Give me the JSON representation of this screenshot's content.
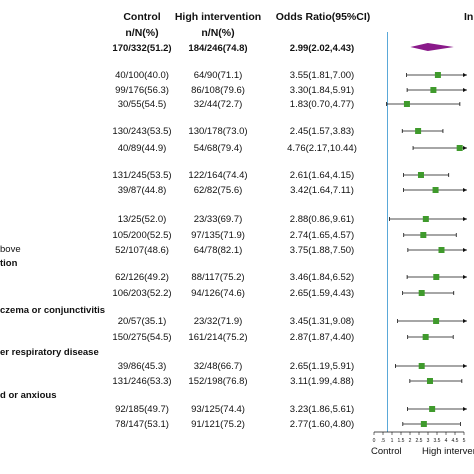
{
  "headers": {
    "control": "Control",
    "high": "High intervention",
    "or": "Odds Ratio(95%CI)",
    "control_sub": "n/N(%)",
    "high_sub": "n/N(%)",
    "right_cut": "In"
  },
  "overall": {
    "control": "170/332(51.2)",
    "high": "184/246(74.8)",
    "or": "2.99(2.02,4.43)"
  },
  "subgroups": [
    {
      "label": "bove",
      "y": 249
    },
    {
      "label": "tion",
      "y": 263
    },
    {
      "label": "czema or conjunctivitis",
      "y": 310
    },
    {
      "label": "er respiratory disease",
      "y": 352
    },
    {
      "label": "d or anxious",
      "y": 395
    }
  ],
  "axis": {
    "ticks": [
      "0",
      "0.5",
      "1",
      "1.5",
      "2",
      "2.5",
      "3",
      "3.5",
      "4",
      "4.5",
      "5"
    ],
    "tick_labels": [
      "0",
      ".5",
      "1",
      "1.5",
      "2",
      "2.5",
      "3",
      "3.5",
      "4",
      "4.5",
      "5"
    ],
    "left_label": "Control",
    "right_label": "High intervent"
  },
  "colors": {
    "point": "#3f9a2c",
    "diamond": "#8a1a8a",
    "ref_line": "#5aa8d8",
    "line": "#111111"
  },
  "chart_data": {
    "type": "forest",
    "x_axis_range": [
      0,
      5
    ],
    "reference_line": 0.75,
    "overall": {
      "or": 2.99,
      "lo": 2.02,
      "hi": 4.43
    },
    "rows": [
      {
        "control": "40/100(40.0)",
        "high": "64/90(71.1)",
        "or_text": "3.55(1.81,7.00)",
        "or": 3.55,
        "lo": 1.81,
        "hi": 7.0
      },
      {
        "control": "99/176(56.3)",
        "high": "86/108(79.6)",
        "or_text": "3.30(1.84,5.91)",
        "or": 3.3,
        "lo": 1.84,
        "hi": 5.91
      },
      {
        "control": "30/55(54.5)",
        "high": "32/44(72.7)",
        "or_text": "1.83(0.70,4.77)",
        "or": 1.83,
        "lo": 0.7,
        "hi": 4.77
      },
      {
        "control": "130/243(53.5)",
        "high": "130/178(73.0)",
        "or_text": "2.45(1.57,3.83)",
        "or": 2.45,
        "lo": 1.57,
        "hi": 3.83
      },
      {
        "control": "40/89(44.9)",
        "high": "54/68(79.4)",
        "or_text": "4.76(2.17,10.44)",
        "or": 4.76,
        "lo": 2.17,
        "hi": 10.44
      },
      {
        "control": "131/245(53.5)",
        "high": "122/164(74.4)",
        "or_text": "2.61(1.64,4.15)",
        "or": 2.61,
        "lo": 1.64,
        "hi": 4.15
      },
      {
        "control": "39/87(44.8)",
        "high": "62/82(75.6)",
        "or_text": "3.42(1.64,7.11)",
        "or": 3.42,
        "lo": 1.64,
        "hi": 7.11
      },
      {
        "control": "13/25(52.0)",
        "high": "23/33(69.7)",
        "or_text": "2.88(0.86,9.61)",
        "or": 2.88,
        "lo": 0.86,
        "hi": 9.61
      },
      {
        "control": "105/200(52.5)",
        "high": "97/135(71.9)",
        "or_text": "2.74(1.65,4.57)",
        "or": 2.74,
        "lo": 1.65,
        "hi": 4.57
      },
      {
        "control": "52/107(48.6)",
        "high": "64/78(82.1)",
        "or_text": "3.75(1.88,7.50)",
        "or": 3.75,
        "lo": 1.88,
        "hi": 7.5
      },
      {
        "control": "62/126(49.2)",
        "high": "88/117(75.2)",
        "or_text": "3.46(1.84,6.52)",
        "or": 3.46,
        "lo": 1.84,
        "hi": 6.52
      },
      {
        "control": "106/203(52.2)",
        "high": "94/126(74.6)",
        "or_text": "2.65(1.59,4.43)",
        "or": 2.65,
        "lo": 1.59,
        "hi": 4.43
      },
      {
        "control": "20/57(35.1)",
        "high": "23/32(71.9)",
        "or_text": "3.45(1.31,9.08)",
        "or": 3.45,
        "lo": 1.31,
        "hi": 9.08
      },
      {
        "control": "150/275(54.5)",
        "high": "161/214(75.2)",
        "or_text": "2.87(1.87,4.40)",
        "or": 2.87,
        "lo": 1.87,
        "hi": 4.4
      },
      {
        "control": "39/86(45.3)",
        "high": "32/48(66.7)",
        "or_text": "2.65(1.19,5.91)",
        "or": 2.65,
        "lo": 1.19,
        "hi": 5.91
      },
      {
        "control": "131/246(53.3)",
        "high": "152/198(76.8)",
        "or_text": "3.11(1.99,4.88)",
        "or": 3.11,
        "lo": 1.99,
        "hi": 4.88
      },
      {
        "control": "92/185(49.7)",
        "high": "93/125(74.4)",
        "or_text": "3.23(1.86,5.61)",
        "or": 3.23,
        "lo": 1.86,
        "hi": 5.61
      },
      {
        "control": "78/147(53.1)",
        "high": "91/121(75.2)",
        "or_text": "2.77(1.60,4.80)",
        "or": 2.77,
        "lo": 1.6,
        "hi": 4.8
      }
    ]
  }
}
